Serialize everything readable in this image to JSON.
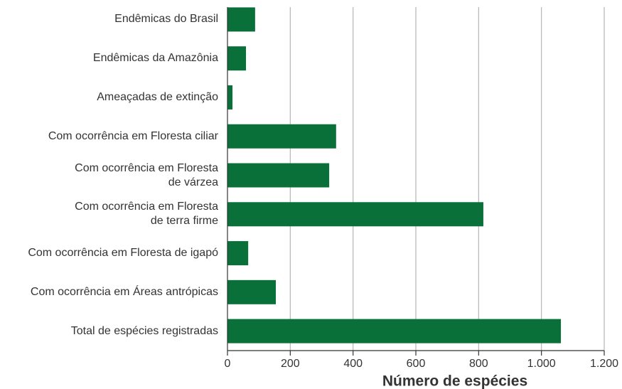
{
  "chart_data": {
    "type": "bar",
    "orientation": "horizontal",
    "categories": [
      "Endêmicas do Brasil",
      "Endêmicas da Amazônia",
      "Ameaçadas de extinção",
      "Com ocorrência em Floresta ciliar",
      "Com ocorrência em Floresta\nde várzea",
      "Com ocorrência em Floresta\nde terra firme",
      "Com ocorrência em Floresta de igapó",
      "Com ocorrência em Áreas antrópicas",
      "Total de espécies registradas"
    ],
    "values": [
      88,
      59,
      16,
      346,
      324,
      815,
      66,
      154,
      1062
    ],
    "color": "#0a703a",
    "xlim": [
      0,
      1200
    ],
    "xticks": [
      0,
      200,
      400,
      600,
      800,
      {
        "value": 1000,
        "label": "1.000"
      },
      {
        "value": 1200,
        "label": "1.200"
      }
    ],
    "xlabel": "Número de espécies",
    "grid": true
  }
}
